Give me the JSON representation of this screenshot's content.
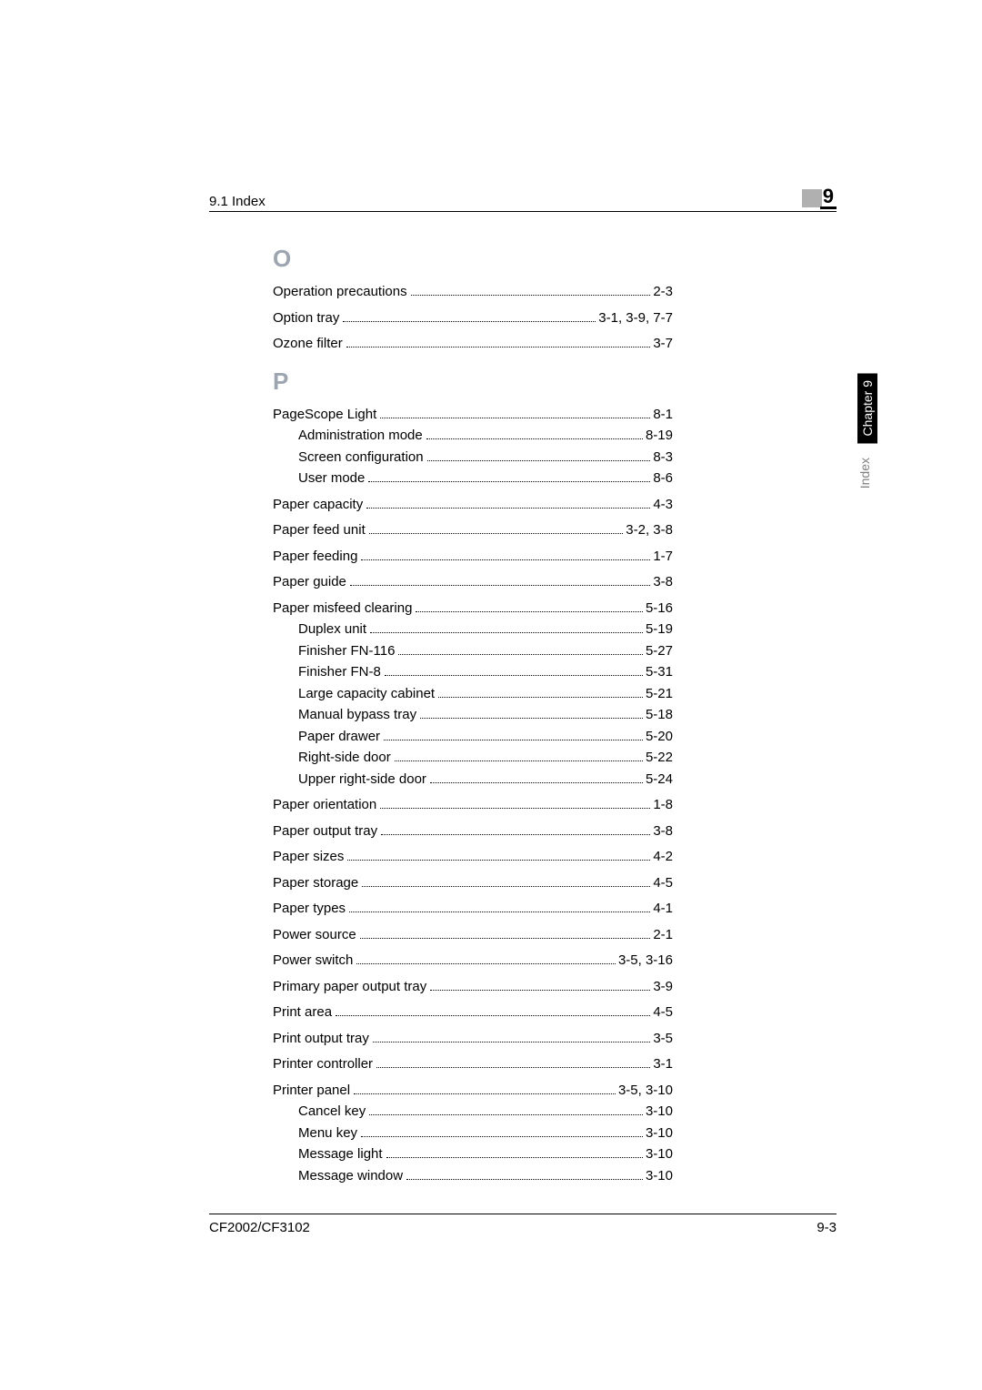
{
  "header": {
    "section": "9.1 Index",
    "chapter_number": "9"
  },
  "side": {
    "chapter_label": "Chapter 9",
    "index_label": "Index"
  },
  "sections": [
    {
      "letter": "O",
      "entries": [
        {
          "label": "Operation precautions",
          "page": "2-3",
          "level": 0
        },
        {
          "label": "Option tray",
          "page": "3-1, 3-9, 7-7",
          "level": 0
        },
        {
          "label": "Ozone filter",
          "page": "3-7",
          "level": 0
        }
      ]
    },
    {
      "letter": "P",
      "entries": [
        {
          "label": "PageScope Light",
          "page": "8-1",
          "level": 0
        },
        {
          "label": "Administration mode",
          "page": "8-19",
          "level": 1
        },
        {
          "label": "Screen configuration",
          "page": "8-3",
          "level": 1
        },
        {
          "label": "User mode",
          "page": "8-6",
          "level": 1
        },
        {
          "label": "Paper capacity",
          "page": "4-3",
          "level": 0
        },
        {
          "label": "Paper feed unit",
          "page": "3-2, 3-8",
          "level": 0
        },
        {
          "label": "Paper feeding",
          "page": "1-7",
          "level": 0
        },
        {
          "label": "Paper guide",
          "page": "3-8",
          "level": 0
        },
        {
          "label": "Paper misfeed clearing",
          "page": "5-16",
          "level": 0
        },
        {
          "label": "Duplex unit",
          "page": "5-19",
          "level": 1
        },
        {
          "label": "Finisher FN-116",
          "page": "5-27",
          "level": 1
        },
        {
          "label": "Finisher FN-8",
          "page": "5-31",
          "level": 1
        },
        {
          "label": "Large capacity cabinet",
          "page": "5-21",
          "level": 1
        },
        {
          "label": "Manual bypass tray",
          "page": "5-18",
          "level": 1
        },
        {
          "label": "Paper drawer",
          "page": "5-20",
          "level": 1
        },
        {
          "label": "Right-side door",
          "page": "5-22",
          "level": 1
        },
        {
          "label": "Upper right-side door",
          "page": "5-24",
          "level": 1
        },
        {
          "label": "Paper orientation",
          "page": "1-8",
          "level": 0
        },
        {
          "label": "Paper output tray",
          "page": "3-8",
          "level": 0
        },
        {
          "label": "Paper sizes",
          "page": "4-2",
          "level": 0
        },
        {
          "label": "Paper storage",
          "page": "4-5",
          "level": 0
        },
        {
          "label": "Paper types",
          "page": "4-1",
          "level": 0
        },
        {
          "label": "Power source",
          "page": "2-1",
          "level": 0
        },
        {
          "label": "Power switch",
          "page": "3-5, 3-16",
          "level": 0
        },
        {
          "label": "Primary paper output tray",
          "page": "3-9",
          "level": 0
        },
        {
          "label": "Print area",
          "page": "4-5",
          "level": 0
        },
        {
          "label": "Print output tray",
          "page": "3-5",
          "level": 0
        },
        {
          "label": "Printer controller",
          "page": "3-1",
          "level": 0
        },
        {
          "label": "Printer panel",
          "page": "3-5, 3-10",
          "level": 0
        },
        {
          "label": "Cancel key",
          "page": "3-10",
          "level": 1
        },
        {
          "label": "Menu key",
          "page": "3-10",
          "level": 1
        },
        {
          "label": "Message light",
          "page": "3-10",
          "level": 1
        },
        {
          "label": "Message window",
          "page": "3-10",
          "level": 1
        }
      ]
    }
  ],
  "footer": {
    "model": "CF2002/CF3102",
    "page": "9-3"
  }
}
